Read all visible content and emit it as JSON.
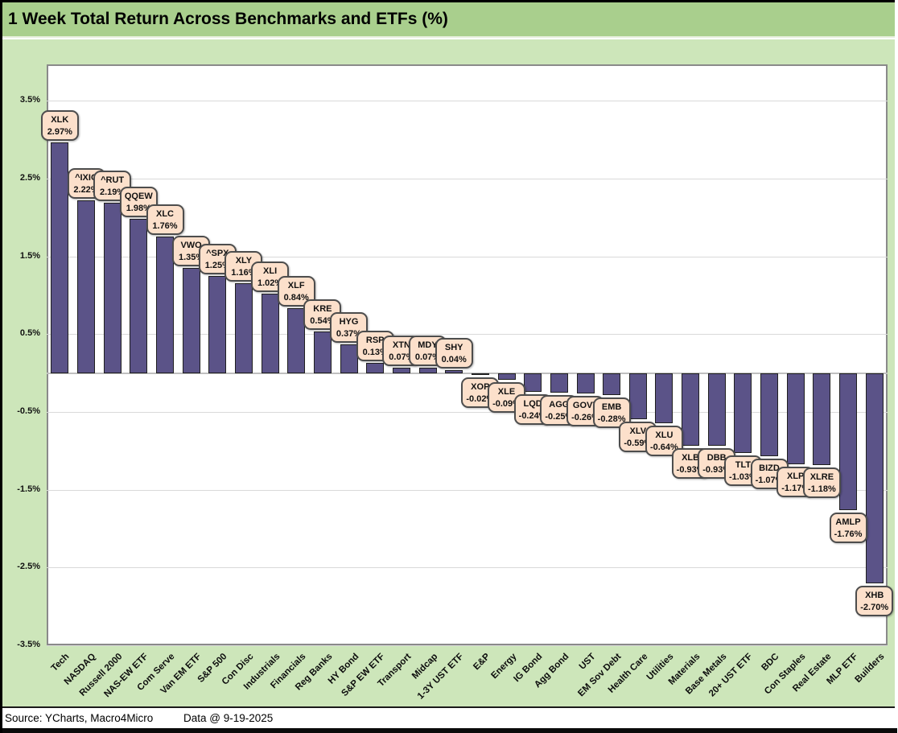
{
  "window": {
    "title_bar": "1 Week Total Return Across Benchmarks and ETFs (%)",
    "footer_source": "Source: YCharts, Macro4Micro",
    "footer_date": "Data @ 9-19-2025"
  },
  "colors": {
    "title_bg": "#A9CF8D",
    "chart_bg": "#CDE6BA",
    "plot_bg": "#FFFFFF",
    "bar_fill": "#5B5388",
    "bar_border": "#1F1F1F",
    "callout_bg": "#FCE0CB",
    "callout_border": "#4D4D4D",
    "gridline": "#D9D9D9",
    "plot_border": "#8A8A8A"
  },
  "chart_data": {
    "type": "bar",
    "title": "1 Week Total Return Across Benchmarks and ETFs (%)",
    "xlabel": "",
    "ylabel": "",
    "ylim": [
      -3.5,
      3.97
    ],
    "grid": true,
    "legend": "none",
    "yticks": [
      {
        "value": 3.5,
        "label": "3.5%"
      },
      {
        "value": 2.5,
        "label": "2.5%"
      },
      {
        "value": 1.5,
        "label": "1.5%"
      },
      {
        "value": 0.5,
        "label": "0.5%"
      },
      {
        "value": -0.5,
        "label": "-0.5%"
      },
      {
        "value": -1.5,
        "label": "-1.5%"
      },
      {
        "value": -2.5,
        "label": "-2.5%"
      },
      {
        "value": -3.5,
        "label": "-3.5%"
      }
    ],
    "points": [
      {
        "category": "Tech",
        "ticker": "XLK",
        "value": 2.97,
        "value_label": "2.97%"
      },
      {
        "category": "NASDAQ",
        "ticker": "^IXIC",
        "value": 2.22,
        "value_label": "2.22%"
      },
      {
        "category": "Russell 2000",
        "ticker": "^RUT",
        "value": 2.19,
        "value_label": "2.19%"
      },
      {
        "category": "NAS-EW ETF",
        "ticker": "QQEW",
        "value": 1.98,
        "value_label": "1.98%"
      },
      {
        "category": "Com Serve",
        "ticker": "XLC",
        "value": 1.76,
        "value_label": "1.76%"
      },
      {
        "category": "Van EM ETF",
        "ticker": "VWO",
        "value": 1.35,
        "value_label": "1.35%"
      },
      {
        "category": "S&P 500",
        "ticker": "^SPX",
        "value": 1.25,
        "value_label": "1.25%"
      },
      {
        "category": "Con Disc",
        "ticker": "XLY",
        "value": 1.16,
        "value_label": "1.16%"
      },
      {
        "category": "Industrials",
        "ticker": "XLI",
        "value": 1.02,
        "value_label": "1.02%"
      },
      {
        "category": "Financials",
        "ticker": "XLF",
        "value": 0.84,
        "value_label": "0.84%"
      },
      {
        "category": "Reg Banks",
        "ticker": "KRE",
        "value": 0.54,
        "value_label": "0.54%"
      },
      {
        "category": "HY Bond",
        "ticker": "HYG",
        "value": 0.37,
        "value_label": "0.37%"
      },
      {
        "category": "S&P EW ETF",
        "ticker": "RSP",
        "value": 0.13,
        "value_label": "0.13%"
      },
      {
        "category": "Transport",
        "ticker": "XTN",
        "value": 0.07,
        "value_label": "0.07%"
      },
      {
        "category": "Midcap",
        "ticker": "MDY",
        "value": 0.07,
        "value_label": "0.07%"
      },
      {
        "category": "1-3Y UST ETF",
        "ticker": "SHY",
        "value": 0.04,
        "value_label": "0.04%"
      },
      {
        "category": "E&P",
        "ticker": "XOP",
        "value": -0.02,
        "value_label": "-0.02%"
      },
      {
        "category": "Energy",
        "ticker": "XLE",
        "value": -0.09,
        "value_label": "-0.09%"
      },
      {
        "category": "IG Bond",
        "ticker": "LQD",
        "value": -0.24,
        "value_label": "-0.24%"
      },
      {
        "category": "Agg Bond",
        "ticker": "AGG",
        "value": -0.25,
        "value_label": "-0.25%"
      },
      {
        "category": "UST",
        "ticker": "GOVT",
        "value": -0.26,
        "value_label": "-0.26%"
      },
      {
        "category": "EM Sov Debt",
        "ticker": "EMB",
        "value": -0.28,
        "value_label": "-0.28%"
      },
      {
        "category": "Health Care",
        "ticker": "XLV",
        "value": -0.59,
        "value_label": "-0.59%"
      },
      {
        "category": "Utilities",
        "ticker": "XLU",
        "value": -0.64,
        "value_label": "-0.64%"
      },
      {
        "category": "Materials",
        "ticker": "XLB",
        "value": -0.93,
        "value_label": "-0.93%"
      },
      {
        "category": "Base Metals",
        "ticker": "DBB",
        "value": -0.93,
        "value_label": "-0.93%"
      },
      {
        "category": "20+ UST ETF",
        "ticker": "TLT",
        "value": -1.03,
        "value_label": "-1.03%"
      },
      {
        "category": "BDC",
        "ticker": "BIZD",
        "value": -1.07,
        "value_label": "-1.07%"
      },
      {
        "category": "Con Staples",
        "ticker": "XLP",
        "value": -1.17,
        "value_label": "-1.17%"
      },
      {
        "category": "Real Estate",
        "ticker": "XLRE",
        "value": -1.18,
        "value_label": "-1.18%"
      },
      {
        "category": "MLP ETF",
        "ticker": "AMLP",
        "value": -1.76,
        "value_label": "-1.76%"
      },
      {
        "category": "Builders",
        "ticker": "XHB",
        "value": -2.7,
        "value_label": "-2.70%"
      }
    ]
  }
}
